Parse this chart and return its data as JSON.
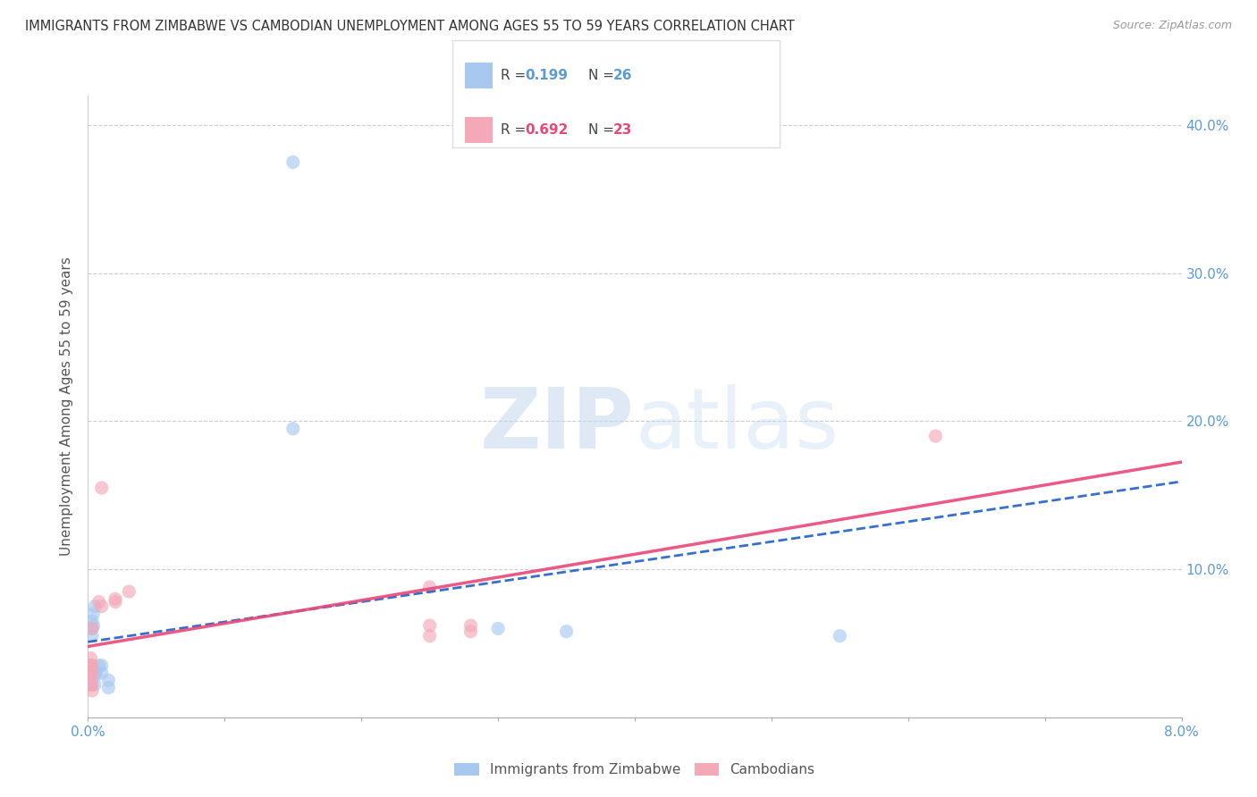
{
  "title": "IMMIGRANTS FROM ZIMBABWE VS CAMBODIAN UNEMPLOYMENT AMONG AGES 55 TO 59 YEARS CORRELATION CHART",
  "source": "Source: ZipAtlas.com",
  "ylabel": "Unemployment Among Ages 55 to 59 years",
  "xlim": [
    0.0,
    0.08
  ],
  "ylim": [
    0.0,
    0.42
  ],
  "xticks": [
    0.0,
    0.01,
    0.02,
    0.03,
    0.04,
    0.05,
    0.06,
    0.07,
    0.08
  ],
  "xticklabels": [
    "0.0%",
    "",
    "",
    "",
    "",
    "",
    "",
    "",
    "8.0%"
  ],
  "yticks": [
    0.0,
    0.1,
    0.2,
    0.3,
    0.4
  ],
  "yticklabels_right": [
    "",
    "10.0%",
    "20.0%",
    "30.0%",
    "40.0%"
  ],
  "blue_R": "0.199",
  "blue_N": "26",
  "pink_R": "0.692",
  "pink_N": "23",
  "blue_color": "#a8c8f0",
  "pink_color": "#f4a8b8",
  "blue_line_color": "#2060c8",
  "pink_line_color": "#e84878",
  "blue_scatter": [
    [
      0.0001,
      0.028
    ],
    [
      0.0001,
      0.025
    ],
    [
      0.0001,
      0.022
    ],
    [
      0.0002,
      0.035
    ],
    [
      0.0002,
      0.03
    ],
    [
      0.0002,
      0.025
    ],
    [
      0.0002,
      0.022
    ],
    [
      0.0003,
      0.065
    ],
    [
      0.0003,
      0.06
    ],
    [
      0.0003,
      0.055
    ],
    [
      0.0004,
      0.07
    ],
    [
      0.0004,
      0.062
    ],
    [
      0.0005,
      0.075
    ],
    [
      0.0005,
      0.028
    ],
    [
      0.0005,
      0.022
    ],
    [
      0.0006,
      0.03
    ],
    [
      0.0008,
      0.035
    ],
    [
      0.001,
      0.035
    ],
    [
      0.001,
      0.03
    ],
    [
      0.0015,
      0.025
    ],
    [
      0.0015,
      0.02
    ],
    [
      0.015,
      0.375
    ],
    [
      0.015,
      0.195
    ],
    [
      0.03,
      0.06
    ],
    [
      0.035,
      0.058
    ],
    [
      0.055,
      0.055
    ]
  ],
  "pink_scatter": [
    [
      0.0001,
      0.035
    ],
    [
      0.0001,
      0.03
    ],
    [
      0.0002,
      0.04
    ],
    [
      0.0002,
      0.035
    ],
    [
      0.0002,
      0.028
    ],
    [
      0.0002,
      0.022
    ],
    [
      0.0003,
      0.06
    ],
    [
      0.0003,
      0.035
    ],
    [
      0.0003,
      0.03
    ],
    [
      0.0003,
      0.022
    ],
    [
      0.0003,
      0.018
    ],
    [
      0.0008,
      0.078
    ],
    [
      0.001,
      0.155
    ],
    [
      0.001,
      0.075
    ],
    [
      0.002,
      0.08
    ],
    [
      0.002,
      0.078
    ],
    [
      0.003,
      0.085
    ],
    [
      0.025,
      0.088
    ],
    [
      0.025,
      0.062
    ],
    [
      0.025,
      0.055
    ],
    [
      0.028,
      0.062
    ],
    [
      0.028,
      0.058
    ],
    [
      0.062,
      0.19
    ]
  ],
  "watermark_zip": "ZIP",
  "watermark_atlas": "atlas",
  "background_color": "#ffffff",
  "right_yaxis_color": "#5b9bd5",
  "gray_color": "#aaaaaa"
}
